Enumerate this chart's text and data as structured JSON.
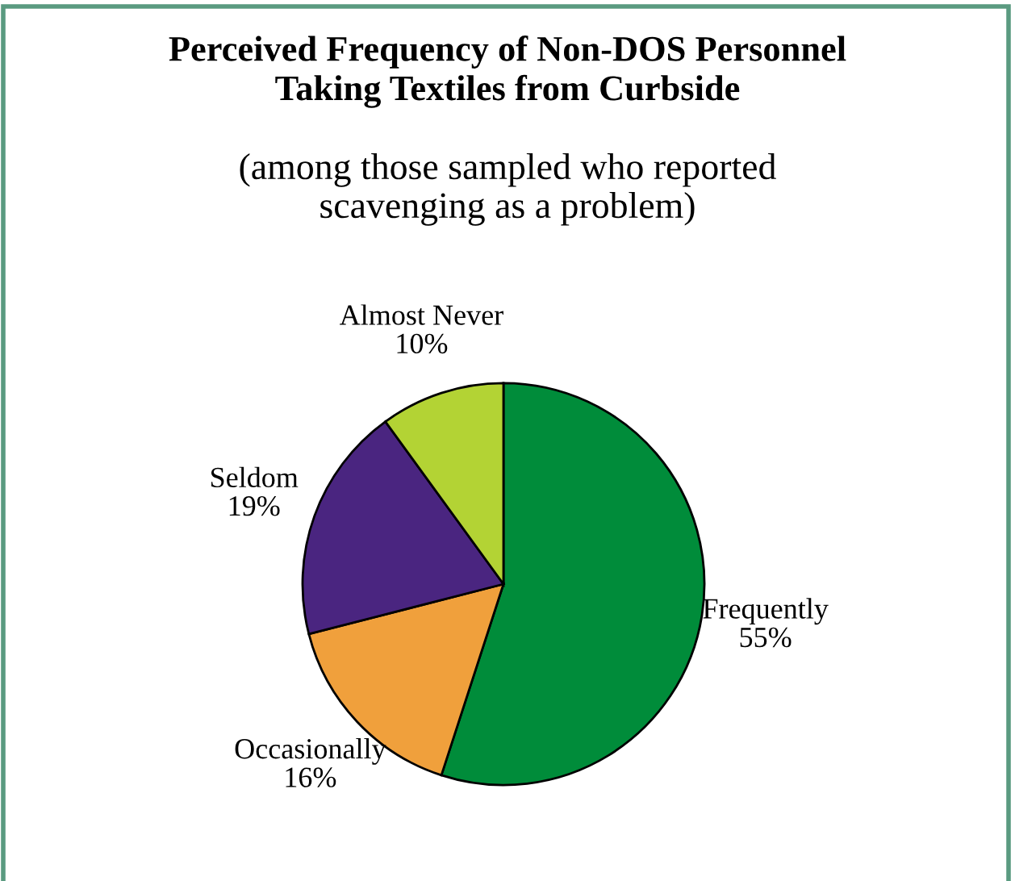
{
  "chart_data": {
    "type": "pie",
    "title": "Perceived Frequency of Non-DOS Personnel\nTaking Textiles from Curbside",
    "subtitle": "(among those sampled who reported\nscavenging as a problem)",
    "categories": [
      "Frequently",
      "Occasionally",
      "Seldom",
      "Almost Never"
    ],
    "values": [
      55,
      16,
      19,
      10
    ],
    "value_labels": [
      "55%",
      "16%",
      "19%",
      "10%"
    ],
    "colors": [
      "#008c3a",
      "#f0a03c",
      "#4a2580",
      "#b3d334"
    ],
    "legend": false
  }
}
